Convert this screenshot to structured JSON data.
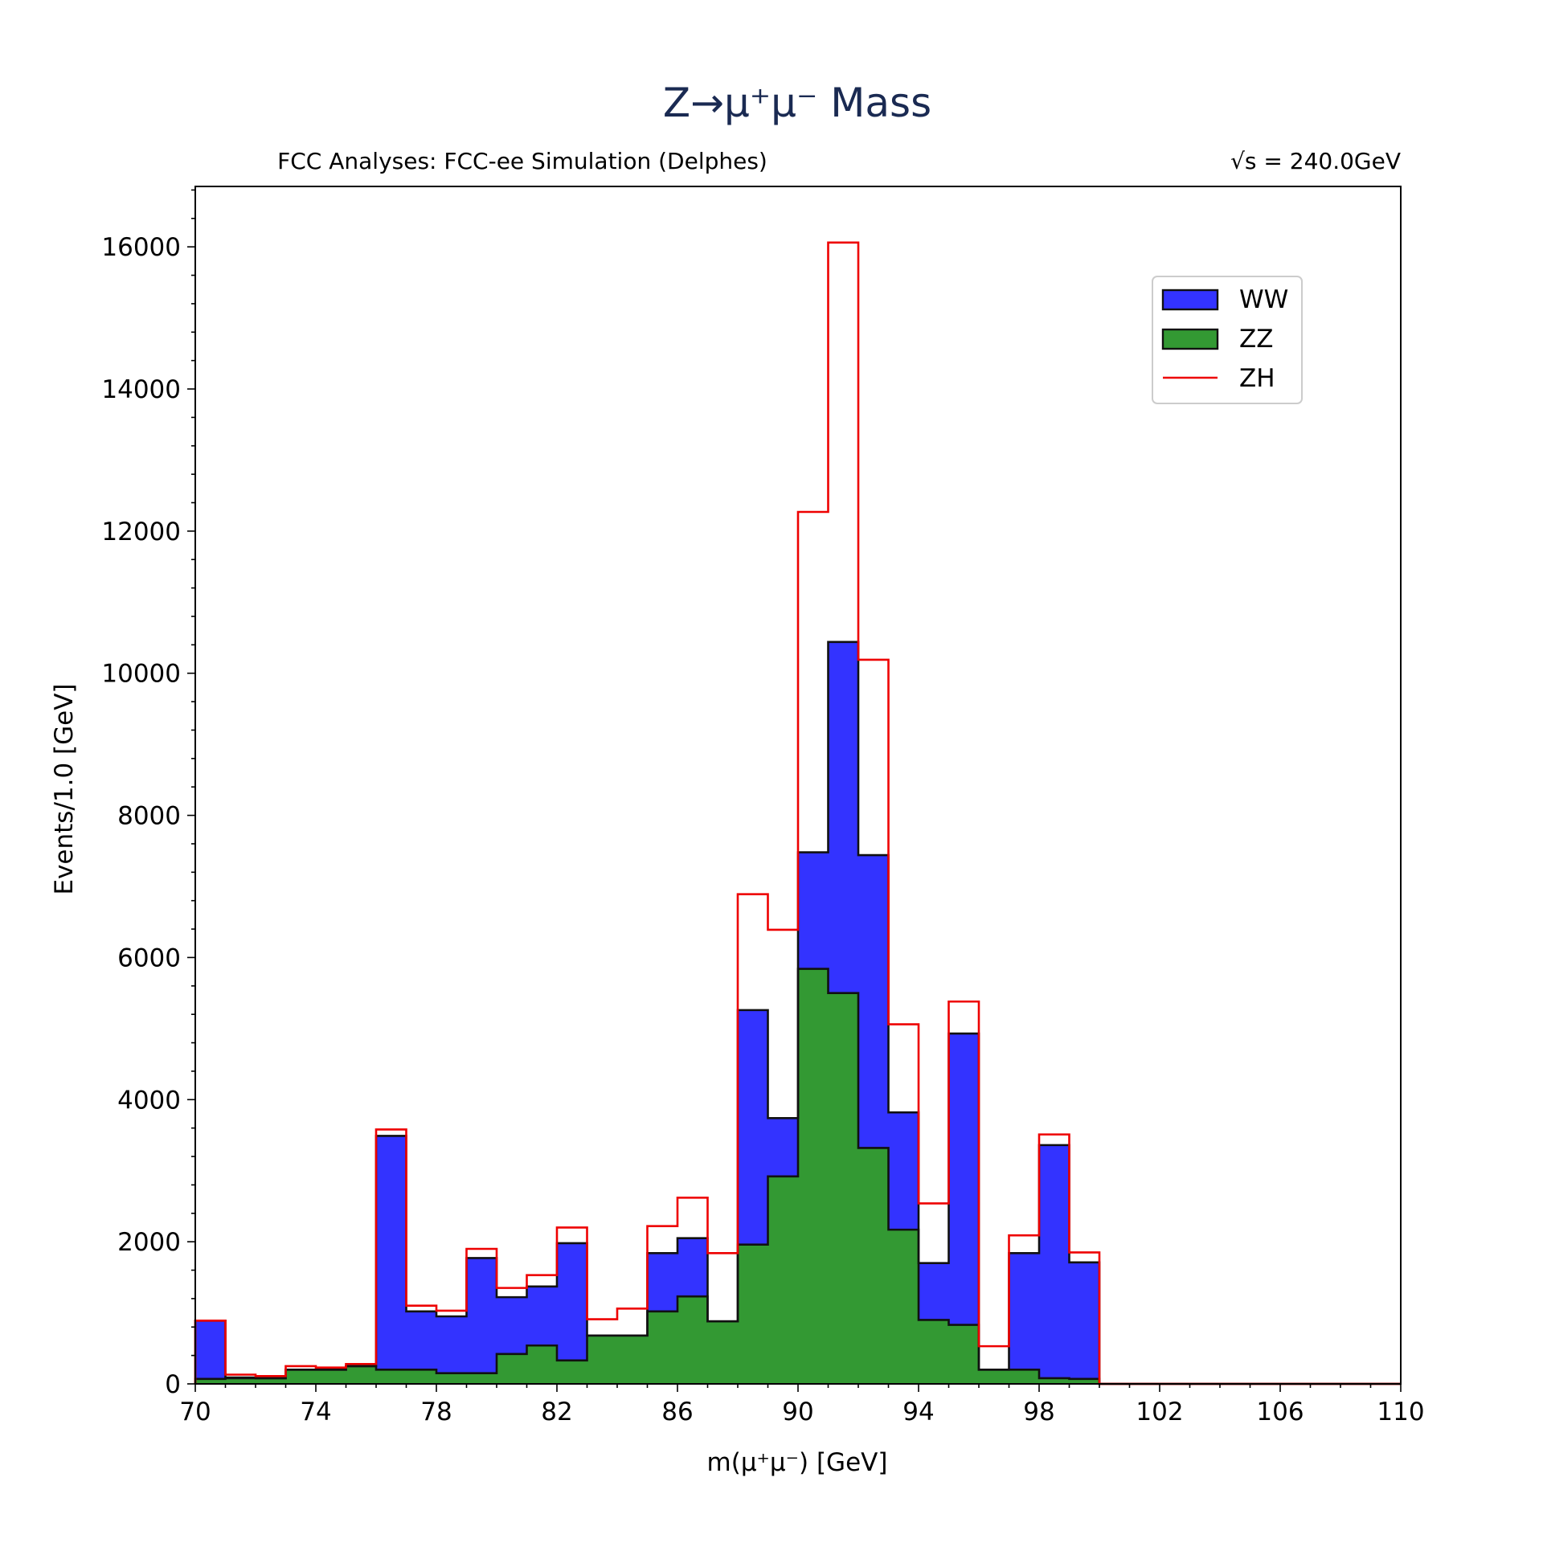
{
  "chart_data": {
    "type": "bar",
    "histogram": true,
    "stacked": true,
    "title": "Z→μ⁺μ⁻ Mass",
    "subtitle_left": "FCC Analyses: FCC-ee Simulation (Delphes)",
    "subtitle_right": "√s = 240.0GeV",
    "xlabel": "m(μ⁺μ⁻) [GeV]",
    "ylabel": "Events/1.0 [GeV]",
    "xlim": [
      70,
      110
    ],
    "ylim": [
      0,
      16850
    ],
    "xticks": [
      70,
      74,
      78,
      82,
      86,
      90,
      94,
      98,
      102,
      106,
      110
    ],
    "yticks": [
      0,
      2000,
      4000,
      6000,
      8000,
      10000,
      12000,
      14000,
      16000
    ],
    "bin_edges": [
      70,
      71,
      72,
      73,
      74,
      75,
      76,
      77,
      78,
      79,
      80,
      81,
      82,
      83,
      84,
      85,
      86,
      87,
      88,
      89,
      90,
      91,
      92,
      93,
      94,
      95,
      96,
      97,
      98,
      99,
      100,
      101,
      102,
      103,
      104,
      105,
      106,
      107,
      108,
      109,
      110
    ],
    "legend": {
      "position": "upper-right"
    },
    "series": [
      {
        "name": "ZZ",
        "color": "#339933",
        "edge_color": "#111111",
        "values": [
          70,
          80,
          80,
          200,
          200,
          250,
          200,
          200,
          150,
          150,
          420,
          540,
          330,
          680,
          680,
          1020,
          1230,
          880,
          1960,
          2920,
          5840,
          5500,
          3320,
          2170,
          900,
          830,
          200,
          200,
          80,
          70,
          0,
          0,
          0,
          0,
          0,
          0,
          0,
          0,
          0,
          0
        ]
      },
      {
        "name": "WW",
        "color": "#3333ff",
        "edge_color": "#111111",
        "cumulative_values": [
          890,
          90,
          80,
          200,
          200,
          250,
          3490,
          1020,
          950,
          1770,
          1220,
          1370,
          1980,
          680,
          680,
          1840,
          2050,
          880,
          5260,
          3740,
          7480,
          10440,
          7440,
          3820,
          1700,
          4930,
          200,
          1840,
          3360,
          1710,
          0,
          0,
          0,
          0,
          0,
          0,
          0,
          0,
          0,
          0
        ]
      },
      {
        "name": "ZH",
        "color": "#ee0000",
        "style": "step",
        "cumulative_values": [
          890,
          130,
          110,
          250,
          230,
          280,
          3580,
          1100,
          1030,
          1900,
          1350,
          1530,
          2200,
          910,
          1060,
          2220,
          2620,
          1840,
          6890,
          6390,
          12270,
          16060,
          10190,
          5060,
          2540,
          5380,
          530,
          2090,
          3510,
          1850,
          0,
          0,
          0,
          0,
          0,
          0,
          0,
          0,
          0,
          0
        ]
      }
    ]
  }
}
